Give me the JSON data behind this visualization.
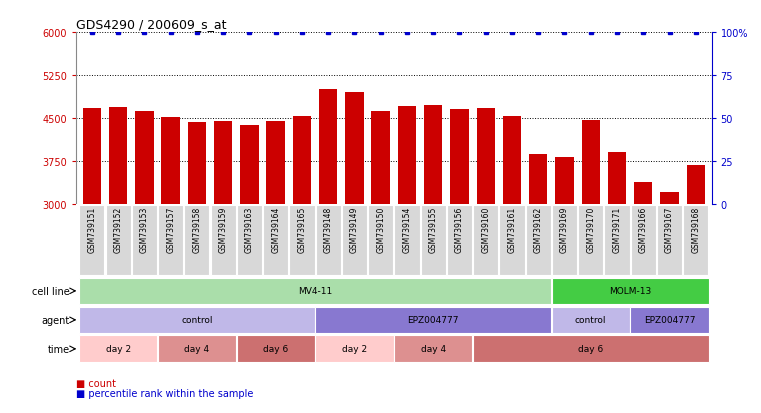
{
  "title": "GDS4290 / 200609_s_at",
  "samples": [
    "GSM739151",
    "GSM739152",
    "GSM739153",
    "GSM739157",
    "GSM739158",
    "GSM739159",
    "GSM739163",
    "GSM739164",
    "GSM739165",
    "GSM739148",
    "GSM739149",
    "GSM739150",
    "GSM739154",
    "GSM739155",
    "GSM739156",
    "GSM739160",
    "GSM739161",
    "GSM739162",
    "GSM739169",
    "GSM739170",
    "GSM739171",
    "GSM739166",
    "GSM739167",
    "GSM739168"
  ],
  "bar_values": [
    4680,
    4690,
    4630,
    4510,
    4430,
    4450,
    4380,
    4450,
    4540,
    5000,
    4960,
    4620,
    4710,
    4720,
    4650,
    4680,
    4530,
    3880,
    3820,
    4460,
    3910,
    3390,
    3210,
    3680
  ],
  "bar_color": "#cc0000",
  "percentile_color": "#0000cc",
  "ylim_left": [
    3000,
    6000
  ],
  "ylim_right": [
    0,
    100
  ],
  "yticks_left": [
    3000,
    3750,
    4500,
    5250,
    6000
  ],
  "yticks_right": [
    0,
    25,
    50,
    75,
    100
  ],
  "hlines": [
    3750,
    4500,
    5250,
    6000
  ],
  "cell_line_row": {
    "label": "cell line",
    "segments": [
      {
        "text": "MV4-11",
        "start": 0,
        "end": 18,
        "color": "#aadeaa"
      },
      {
        "text": "MOLM-13",
        "start": 18,
        "end": 24,
        "color": "#44cc44"
      }
    ]
  },
  "agent_row": {
    "label": "agent",
    "segments": [
      {
        "text": "control",
        "start": 0,
        "end": 9,
        "color": "#c0b8e8"
      },
      {
        "text": "EPZ004777",
        "start": 9,
        "end": 18,
        "color": "#8878d0"
      },
      {
        "text": "control",
        "start": 18,
        "end": 21,
        "color": "#c0b8e8"
      },
      {
        "text": "EPZ004777",
        "start": 21,
        "end": 24,
        "color": "#8878d0"
      }
    ]
  },
  "time_row": {
    "label": "time",
    "segments": [
      {
        "text": "day 2",
        "start": 0,
        "end": 3,
        "color": "#ffcccc"
      },
      {
        "text": "day 4",
        "start": 3,
        "end": 6,
        "color": "#dd9090"
      },
      {
        "text": "day 6",
        "start": 6,
        "end": 9,
        "color": "#cc7070"
      },
      {
        "text": "day 2",
        "start": 9,
        "end": 12,
        "color": "#ffcccc"
      },
      {
        "text": "day 4",
        "start": 12,
        "end": 15,
        "color": "#dd9090"
      },
      {
        "text": "day 6",
        "start": 15,
        "end": 24,
        "color": "#cc7070"
      }
    ]
  },
  "background_color": "#ffffff",
  "bar_width": 0.7,
  "tick_label_bg": "#d8d8d8"
}
